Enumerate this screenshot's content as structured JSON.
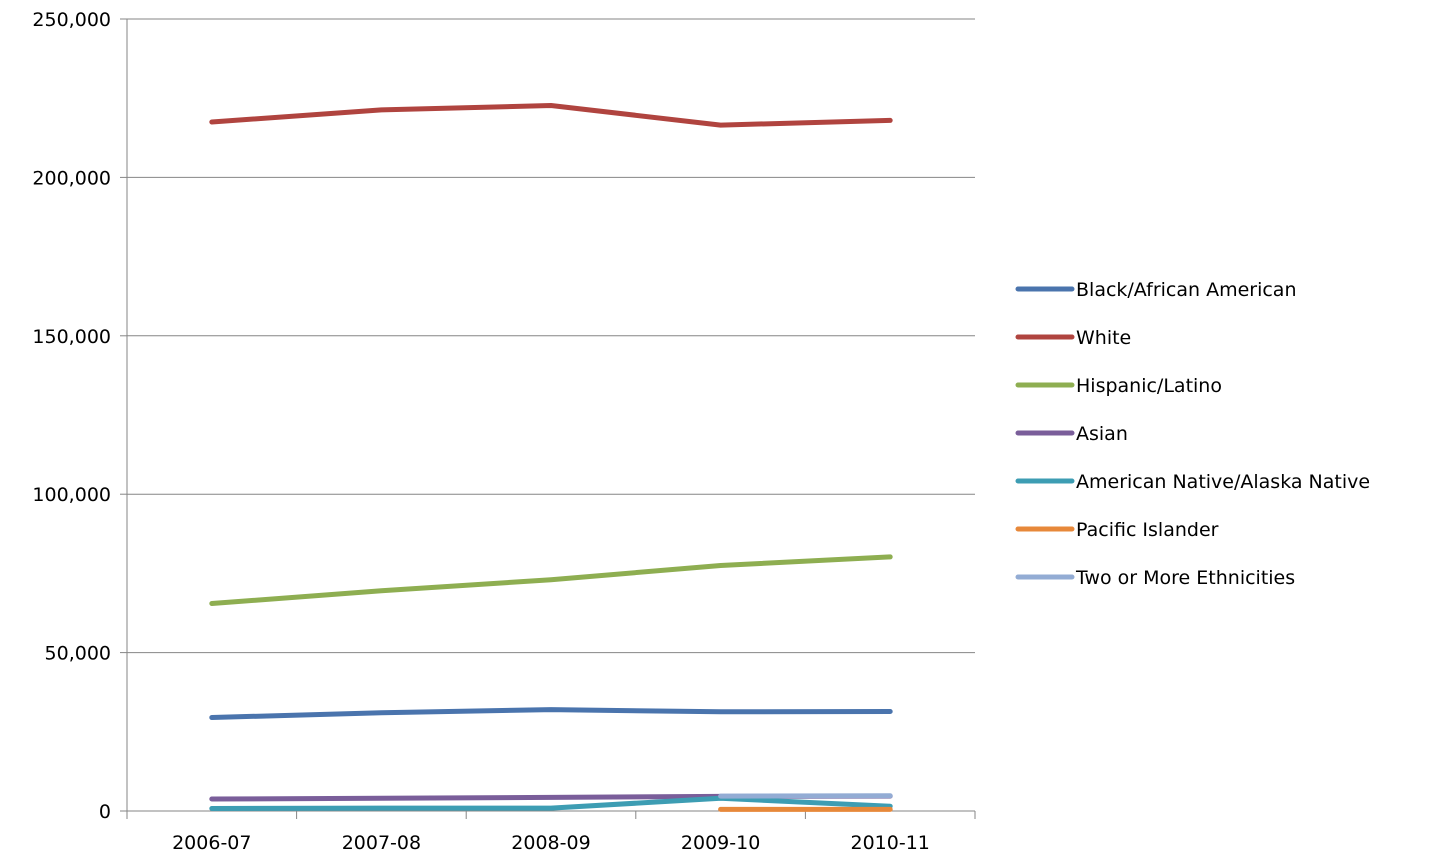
{
  "chart_data": {
    "type": "line",
    "title": "",
    "xlabel": "",
    "ylabel": "",
    "categories": [
      "2006-07",
      "2007-08",
      "2008-09",
      "2009-10",
      "2010-11"
    ],
    "ylim": [
      0,
      250000
    ],
    "yticks": [
      0,
      50000,
      100000,
      150000,
      200000,
      250000
    ],
    "ytick_labels": [
      "0",
      "50,000",
      "100,000",
      "150,000",
      "200,000",
      "250,000"
    ],
    "grid": "horizontal",
    "legend_position": "right",
    "series": [
      {
        "name": "Black/African American",
        "color": "#4a74ad",
        "values": [
          29500,
          31000,
          32000,
          31300,
          31400
        ]
      },
      {
        "name": "White",
        "color": "#b0443f",
        "values": [
          217500,
          221300,
          222700,
          216500,
          218000
        ]
      },
      {
        "name": "Hispanic/Latino",
        "color": "#8eae51",
        "values": [
          65500,
          69500,
          73000,
          77500,
          80200
        ]
      },
      {
        "name": "Asian",
        "color": "#7a5e9a",
        "values": [
          3800,
          4000,
          4300,
          4600,
          4700
        ]
      },
      {
        "name": "American Native/Alaska Native",
        "color": "#3d9db3",
        "values": [
          800,
          900,
          900,
          4000,
          1500
        ]
      },
      {
        "name": "Pacific Islander",
        "color": "#e7883a",
        "values": [
          null,
          null,
          null,
          500,
          500
        ]
      },
      {
        "name": "Two or More Ethnicities",
        "color": "#93acd4",
        "values": [
          null,
          null,
          null,
          4700,
          4800
        ]
      }
    ]
  }
}
